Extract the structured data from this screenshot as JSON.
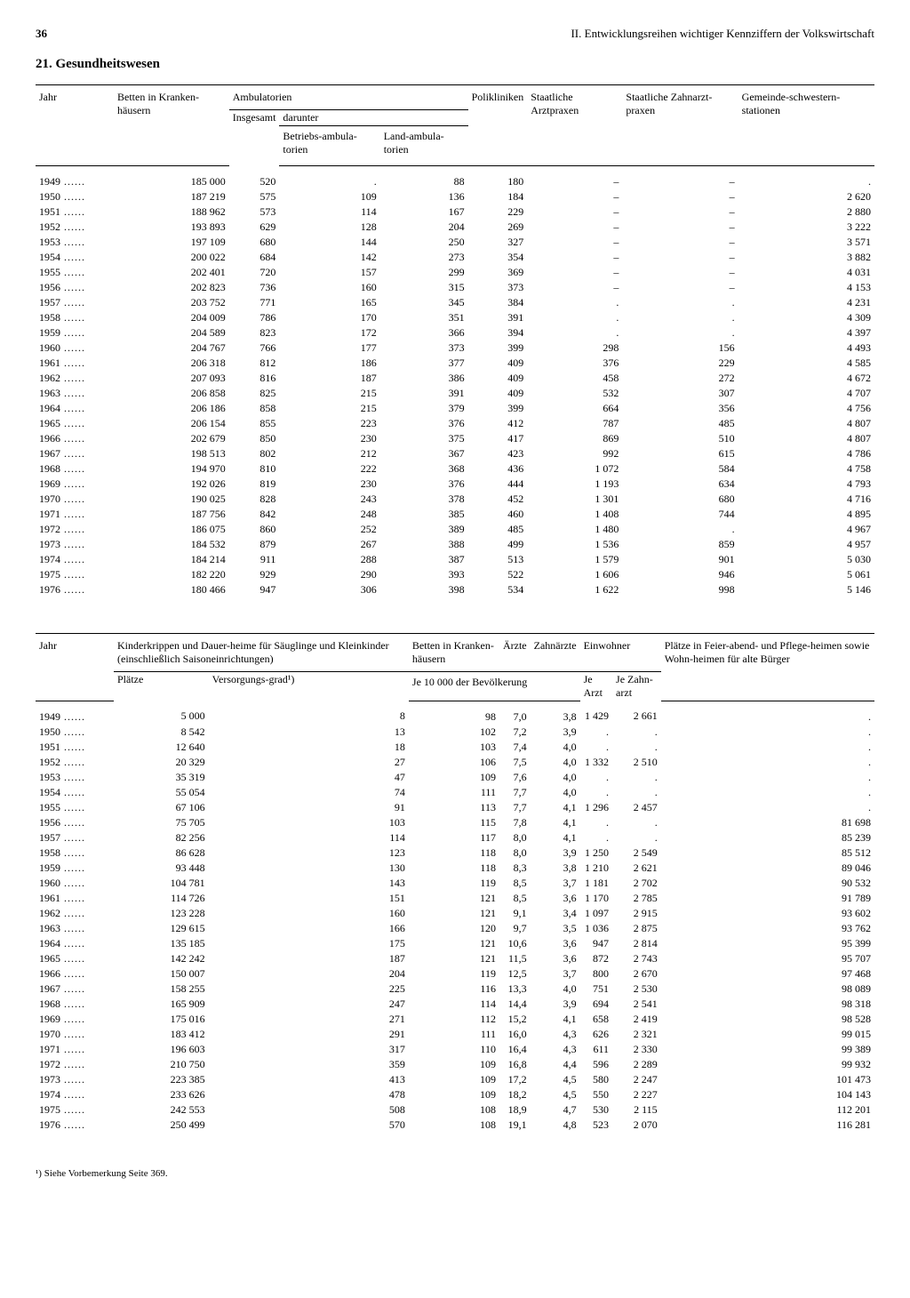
{
  "page_number": "36",
  "chapter_header": "II. Entwicklungsreihen wichtiger Kennziffern der Volkswirtschaft",
  "section_title": "21. Gesundheitswesen",
  "footnote": "¹) Siehe Vorbemerkung Seite 369.",
  "table1": {
    "headers": {
      "jahr": "Jahr",
      "betten": "Betten in Kranken-häusern",
      "ambulatorien": "Ambulatorien",
      "insgesamt": "Insgesamt",
      "darunter": "darunter",
      "betriebs": "Betriebs-ambula-torien",
      "land": "Land-ambula-torien",
      "polikliniken": "Polikliniken",
      "arztpraxen": "Staatliche Arztpraxen",
      "zahnarztpraxen": "Staatliche Zahnarzt-praxen",
      "gemeinde": "Gemeinde-schwestern-stationen"
    },
    "rows": [
      [
        "1949",
        "185 000",
        "520",
        ".",
        "88",
        "180",
        "–",
        "–",
        "."
      ],
      [
        "1950",
        "187 219",
        "575",
        "109",
        "136",
        "184",
        "–",
        "–",
        "2 620"
      ],
      [
        "1951",
        "188 962",
        "573",
        "114",
        "167",
        "229",
        "–",
        "–",
        "2 880"
      ],
      [
        "1952",
        "193 893",
        "629",
        "128",
        "204",
        "269",
        "–",
        "–",
        "3 222"
      ],
      [
        "1953",
        "197 109",
        "680",
        "144",
        "250",
        "327",
        "–",
        "–",
        "3 571"
      ],
      [
        "1954",
        "200 022",
        "684",
        "142",
        "273",
        "354",
        "–",
        "–",
        "3 882"
      ],
      [
        "1955",
        "202 401",
        "720",
        "157",
        "299",
        "369",
        "–",
        "–",
        "4 031"
      ],
      [
        "1956",
        "202 823",
        "736",
        "160",
        "315",
        "373",
        "–",
        "–",
        "4 153"
      ],
      [
        "1957",
        "203 752",
        "771",
        "165",
        "345",
        "384",
        ".",
        ".",
        "4 231"
      ],
      [
        "1958",
        "204 009",
        "786",
        "170",
        "351",
        "391",
        ".",
        ".",
        "4 309"
      ],
      [
        "1959",
        "204 589",
        "823",
        "172",
        "366",
        "394",
        ".",
        ".",
        "4 397"
      ],
      [
        "1960",
        "204 767",
        "766",
        "177",
        "373",
        "399",
        "298",
        "156",
        "4 493"
      ],
      [
        "1961",
        "206 318",
        "812",
        "186",
        "377",
        "409",
        "376",
        "229",
        "4 585"
      ],
      [
        "1962",
        "207 093",
        "816",
        "187",
        "386",
        "409",
        "458",
        "272",
        "4 672"
      ],
      [
        "1963",
        "206 858",
        "825",
        "215",
        "391",
        "409",
        "532",
        "307",
        "4 707"
      ],
      [
        "1964",
        "206 186",
        "858",
        "215",
        "379",
        "399",
        "664",
        "356",
        "4 756"
      ],
      [
        "1965",
        "206 154",
        "855",
        "223",
        "376",
        "412",
        "787",
        "485",
        "4 807"
      ],
      [
        "1966",
        "202 679",
        "850",
        "230",
        "375",
        "417",
        "869",
        "510",
        "4 807"
      ],
      [
        "1967",
        "198 513",
        "802",
        "212",
        "367",
        "423",
        "992",
        "615",
        "4 786"
      ],
      [
        "1968",
        "194 970",
        "810",
        "222",
        "368",
        "436",
        "1 072",
        "584",
        "4 758"
      ],
      [
        "1969",
        "192 026",
        "819",
        "230",
        "376",
        "444",
        "1 193",
        "634",
        "4 793"
      ],
      [
        "1970",
        "190 025",
        "828",
        "243",
        "378",
        "452",
        "1 301",
        "680",
        "4 716"
      ],
      [
        "1971",
        "187 756",
        "842",
        "248",
        "385",
        "460",
        "1 408",
        "744",
        "4 895"
      ],
      [
        "1972",
        "186 075",
        "860",
        "252",
        "389",
        "485",
        "1 480",
        ".",
        "4 967"
      ],
      [
        "1973",
        "184 532",
        "879",
        "267",
        "388",
        "499",
        "1 536",
        "859",
        "4 957"
      ],
      [
        "1974",
        "184 214",
        "911",
        "288",
        "387",
        "513",
        "1 579",
        "901",
        "5 030"
      ],
      [
        "1975",
        "182 220",
        "929",
        "290",
        "393",
        "522",
        "1 606",
        "946",
        "5 061"
      ],
      [
        "1976",
        "180 466",
        "947",
        "306",
        "398",
        "534",
        "1 622",
        "998",
        "5 146"
      ]
    ]
  },
  "table2": {
    "headers": {
      "jahr": "Jahr",
      "kinderkrippen": "Kinderkrippen und Dauer-heime für Säuglinge und Kleinkinder (einschließlich Saisoneinrichtungen)",
      "plaetze": "Plätze",
      "versorgungsgrad": "Versorgungs-grad¹)",
      "betten": "Betten in Kranken-häusern",
      "aerzte": "Ärzte",
      "zahnaerzte": "Zahnärzte",
      "je10000": "Je 10 000 der Bevölkerung",
      "einwohner": "Einwohner",
      "jearzt": "Je Arzt",
      "jezahnarzt": "Je Zahn-arzt",
      "feierabend": "Plätze in Feier-abend- und Pflege-heimen sowie Wohn-heimen für alte Bürger"
    },
    "rows": [
      [
        "1949",
        "5 000",
        "8",
        "98",
        "7,0",
        "3,8",
        "1 429",
        "2 661",
        "."
      ],
      [
        "1950",
        "8 542",
        "13",
        "102",
        "7,2",
        "3,9",
        ".",
        ".",
        "."
      ],
      [
        "1951",
        "12 640",
        "18",
        "103",
        "7,4",
        "4,0",
        ".",
        ".",
        "."
      ],
      [
        "1952",
        "20 329",
        "27",
        "106",
        "7,5",
        "4,0",
        "1 332",
        "2 510",
        "."
      ],
      [
        "1953",
        "35 319",
        "47",
        "109",
        "7,6",
        "4,0",
        ".",
        ".",
        "."
      ],
      [
        "1954",
        "55 054",
        "74",
        "111",
        "7,7",
        "4,0",
        ".",
        ".",
        "."
      ],
      [
        "1955",
        "67 106",
        "91",
        "113",
        "7,7",
        "4,1",
        "1 296",
        "2 457",
        "."
      ],
      [
        "1956",
        "75 705",
        "103",
        "115",
        "7,8",
        "4,1",
        ".",
        ".",
        "81 698"
      ],
      [
        "1957",
        "82 256",
        "114",
        "117",
        "8,0",
        "4,1",
        ".",
        ".",
        "85 239"
      ],
      [
        "1958",
        "86 628",
        "123",
        "118",
        "8,0",
        "3,9",
        "1 250",
        "2 549",
        "85 512"
      ],
      [
        "1959",
        "93 448",
        "130",
        "118",
        "8,3",
        "3,8",
        "1 210",
        "2 621",
        "89 046"
      ],
      [
        "1960",
        "104 781",
        "143",
        "119",
        "8,5",
        "3,7",
        "1 181",
        "2 702",
        "90 532"
      ],
      [
        "1961",
        "114 726",
        "151",
        "121",
        "8,5",
        "3,6",
        "1 170",
        "2 785",
        "91 789"
      ],
      [
        "1962",
        "123 228",
        "160",
        "121",
        "9,1",
        "3,4",
        "1 097",
        "2 915",
        "93 602"
      ],
      [
        "1963",
        "129 615",
        "166",
        "120",
        "9,7",
        "3,5",
        "1 036",
        "2 875",
        "93 762"
      ],
      [
        "1964",
        "135 185",
        "175",
        "121",
        "10,6",
        "3,6",
        "947",
        "2 814",
        "95 399"
      ],
      [
        "1965",
        "142 242",
        "187",
        "121",
        "11,5",
        "3,6",
        "872",
        "2 743",
        "95 707"
      ],
      [
        "1966",
        "150 007",
        "204",
        "119",
        "12,5",
        "3,7",
        "800",
        "2 670",
        "97 468"
      ],
      [
        "1967",
        "158 255",
        "225",
        "116",
        "13,3",
        "4,0",
        "751",
        "2 530",
        "98 089"
      ],
      [
        "1968",
        "165 909",
        "247",
        "114",
        "14,4",
        "3,9",
        "694",
        "2 541",
        "98 318"
      ],
      [
        "1969",
        "175 016",
        "271",
        "112",
        "15,2",
        "4,1",
        "658",
        "2 419",
        "98 528"
      ],
      [
        "1970",
        "183 412",
        "291",
        "111",
        "16,0",
        "4,3",
        "626",
        "2 321",
        "99 015"
      ],
      [
        "1971",
        "196 603",
        "317",
        "110",
        "16,4",
        "4,3",
        "611",
        "2 330",
        "99 389"
      ],
      [
        "1972",
        "210 750",
        "359",
        "109",
        "16,8",
        "4,4",
        "596",
        "2 289",
        "99 932"
      ],
      [
        "1973",
        "223 385",
        "413",
        "109",
        "17,2",
        "4,5",
        "580",
        "2 247",
        "101 473"
      ],
      [
        "1974",
        "233 626",
        "478",
        "109",
        "18,2",
        "4,5",
        "550",
        "2 227",
        "104 143"
      ],
      [
        "1975",
        "242 553",
        "508",
        "108",
        "18,9",
        "4,7",
        "530",
        "2 115",
        "112 201"
      ],
      [
        "1976",
        "250 499",
        "570",
        "108",
        "19,1",
        "4,8",
        "523",
        "2 070",
        "116 281"
      ]
    ]
  }
}
